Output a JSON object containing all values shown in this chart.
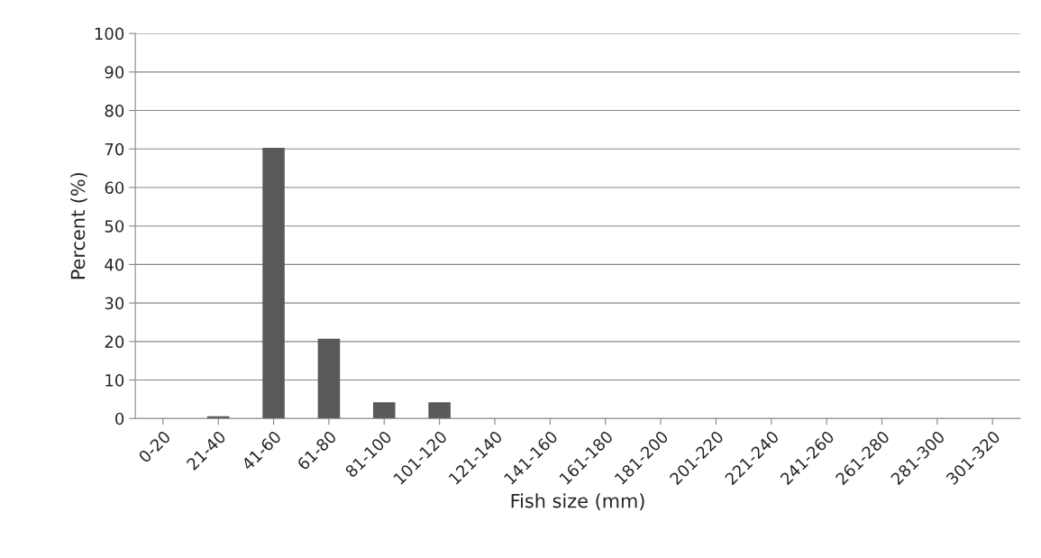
{
  "chart_data": {
    "type": "bar",
    "xlabel": "Fish size (mm)",
    "ylabel": "Percent (%)",
    "categories": [
      "0-20",
      "21-40",
      "41-60",
      "61-80",
      "81-100",
      "101-120",
      "121-140",
      "141-160",
      "161-180",
      "181-200",
      "201-220",
      "221-240",
      "241-260",
      "261-280",
      "281-300",
      "301-320"
    ],
    "values": [
      0,
      0.6,
      70.3,
      20.7,
      4.2,
      4.2,
      0,
      0,
      0,
      0,
      0,
      0,
      0,
      0,
      0,
      0
    ],
    "color": "#595959",
    "ylim": [
      0,
      100
    ],
    "yticks": [
      0,
      10,
      20,
      30,
      40,
      50,
      60,
      70,
      80,
      90,
      100
    ],
    "grid": "y",
    "legend": false
  }
}
